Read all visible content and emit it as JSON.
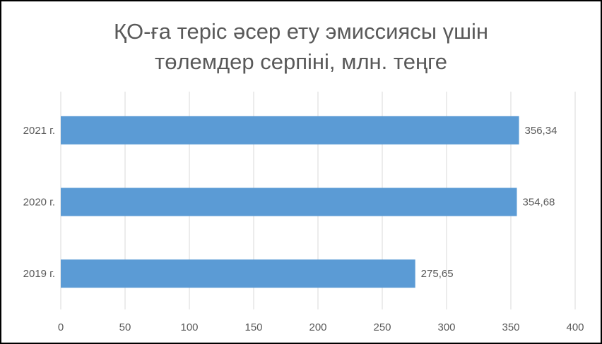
{
  "chart_data": {
    "type": "hbar",
    "title": [
      "ҚО-ға теріс әсер ету эмиссиясы үшін",
      "төлемдер серпіні, млн. теңге"
    ],
    "categories": [
      "2019 г.",
      "2020 г.",
      "2021 г."
    ],
    "values": [
      275.65,
      354.68,
      356.34
    ],
    "value_labels": [
      "275,65",
      "354,68",
      "356,34"
    ],
    "color": "#5b9bd5",
    "xlim": [
      0,
      400
    ],
    "xticks": [
      0,
      50,
      100,
      150,
      200,
      250,
      300,
      350,
      400
    ],
    "grid": true
  }
}
